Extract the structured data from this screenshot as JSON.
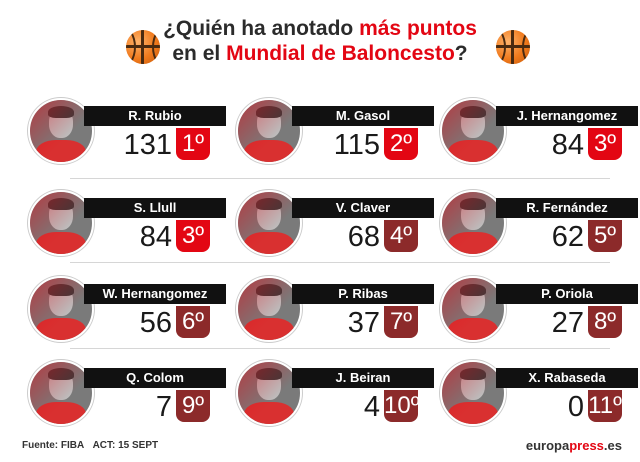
{
  "title": {
    "line1_pre": "¿Quién ha anotado ",
    "line1_red": "más puntos",
    "line2_pre": "en el ",
    "line2_red": "Mundial de Baloncesto",
    "line2_post": "?"
  },
  "players": [
    {
      "name": "R. Rubio",
      "points": "131",
      "rank": "1º"
    },
    {
      "name": "M. Gasol",
      "points": "115",
      "rank": "2º"
    },
    {
      "name": "J. Hernangomez",
      "points": "84",
      "rank": "3º"
    },
    {
      "name": "S. Llull",
      "points": "84",
      "rank": "3º"
    },
    {
      "name": "V. Claver",
      "points": "68",
      "rank": "4º"
    },
    {
      "name": "R. Fernández",
      "points": "62",
      "rank": "5º"
    },
    {
      "name": "W. Hernangomez",
      "points": "56",
      "rank": "6º"
    },
    {
      "name": "P. Ribas",
      "points": "37",
      "rank": "7º"
    },
    {
      "name": "P. Oriola",
      "points": "27",
      "rank": "8º"
    },
    {
      "name": "Q. Colom",
      "points": "7",
      "rank": "9º"
    },
    {
      "name": "J. Beiran",
      "points": "4",
      "rank": "10º"
    },
    {
      "name": "X. Rabaseda",
      "points": "0",
      "rank": "11º"
    }
  ],
  "footer": {
    "source": "Fuente: FIBA",
    "date": "ACT: 15 SEPT",
    "brand_a": "europa",
    "brand_b": "press",
    "brand_c": ".es"
  },
  "colors": {
    "accent": "#e30613",
    "bar": "#111111",
    "rank_dark": "#8c2a2a"
  },
  "icons": [
    "basketball-icon",
    "basketball-icon"
  ]
}
